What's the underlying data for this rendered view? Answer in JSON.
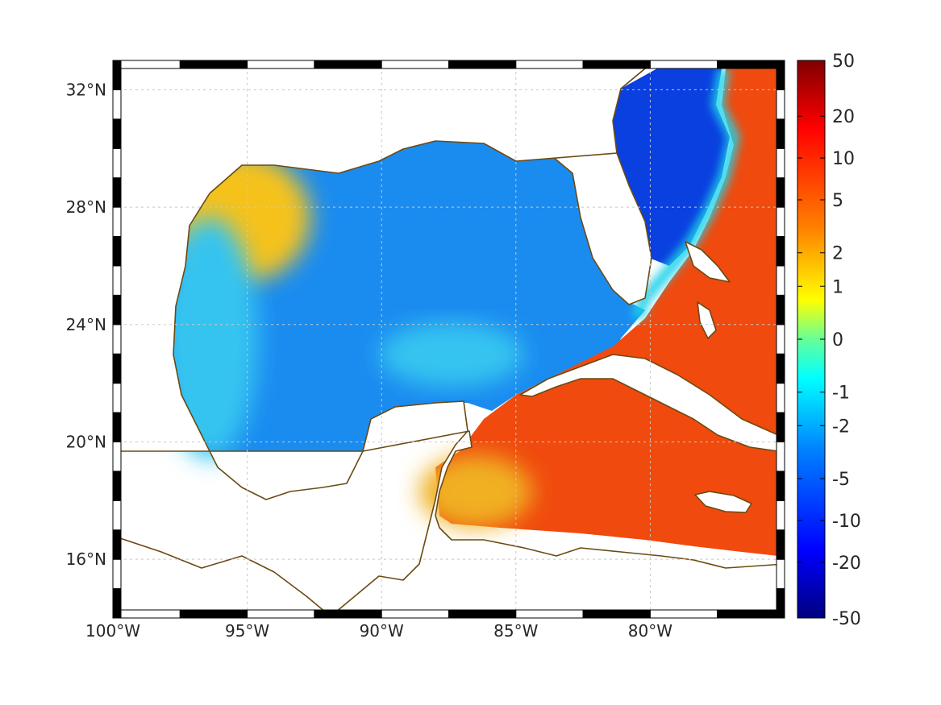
{
  "map": {
    "lon_range": [
      -100,
      -75
    ],
    "lat_range": [
      14,
      33
    ],
    "lon_ticks": [
      -100,
      -95,
      -90,
      -85,
      -80
    ],
    "lon_tick_labels": [
      "100°W",
      "95°W",
      "90°W",
      "85°W",
      "80°W"
    ],
    "lat_ticks": [
      16,
      20,
      24,
      28,
      32
    ],
    "lat_tick_labels": [
      "16°N",
      "20°N",
      "24°N",
      "28°N",
      "32°N"
    ],
    "grid": true,
    "coastline_color": "#6b4a12",
    "frame_style": "alternating black/white border"
  },
  "colorbar": {
    "position": "right",
    "colormap": "jet",
    "tick_labels": [
      "50",
      "20",
      "10",
      "5",
      "2",
      "1",
      "0",
      "-1",
      "-2",
      "-5",
      "-10",
      "-20",
      "-50"
    ],
    "tick_values": [
      50,
      20,
      10,
      5,
      2,
      1,
      0,
      -1,
      -2,
      -5,
      -10,
      -20,
      -50
    ]
  },
  "colors": {
    "gulf_deep": "#0a5ee8",
    "gulf_mid": "#1a8cf0",
    "west_shelf": "#36c4f0",
    "texas_coast": "#f5c21a",
    "caribbean": "#f04a0e",
    "atlantic_east": "#f23a0a",
    "atlantic_west": "#0a3fe0",
    "gulf_stream_front": "#1cd2e8",
    "yucatan": "#f0b020"
  }
}
